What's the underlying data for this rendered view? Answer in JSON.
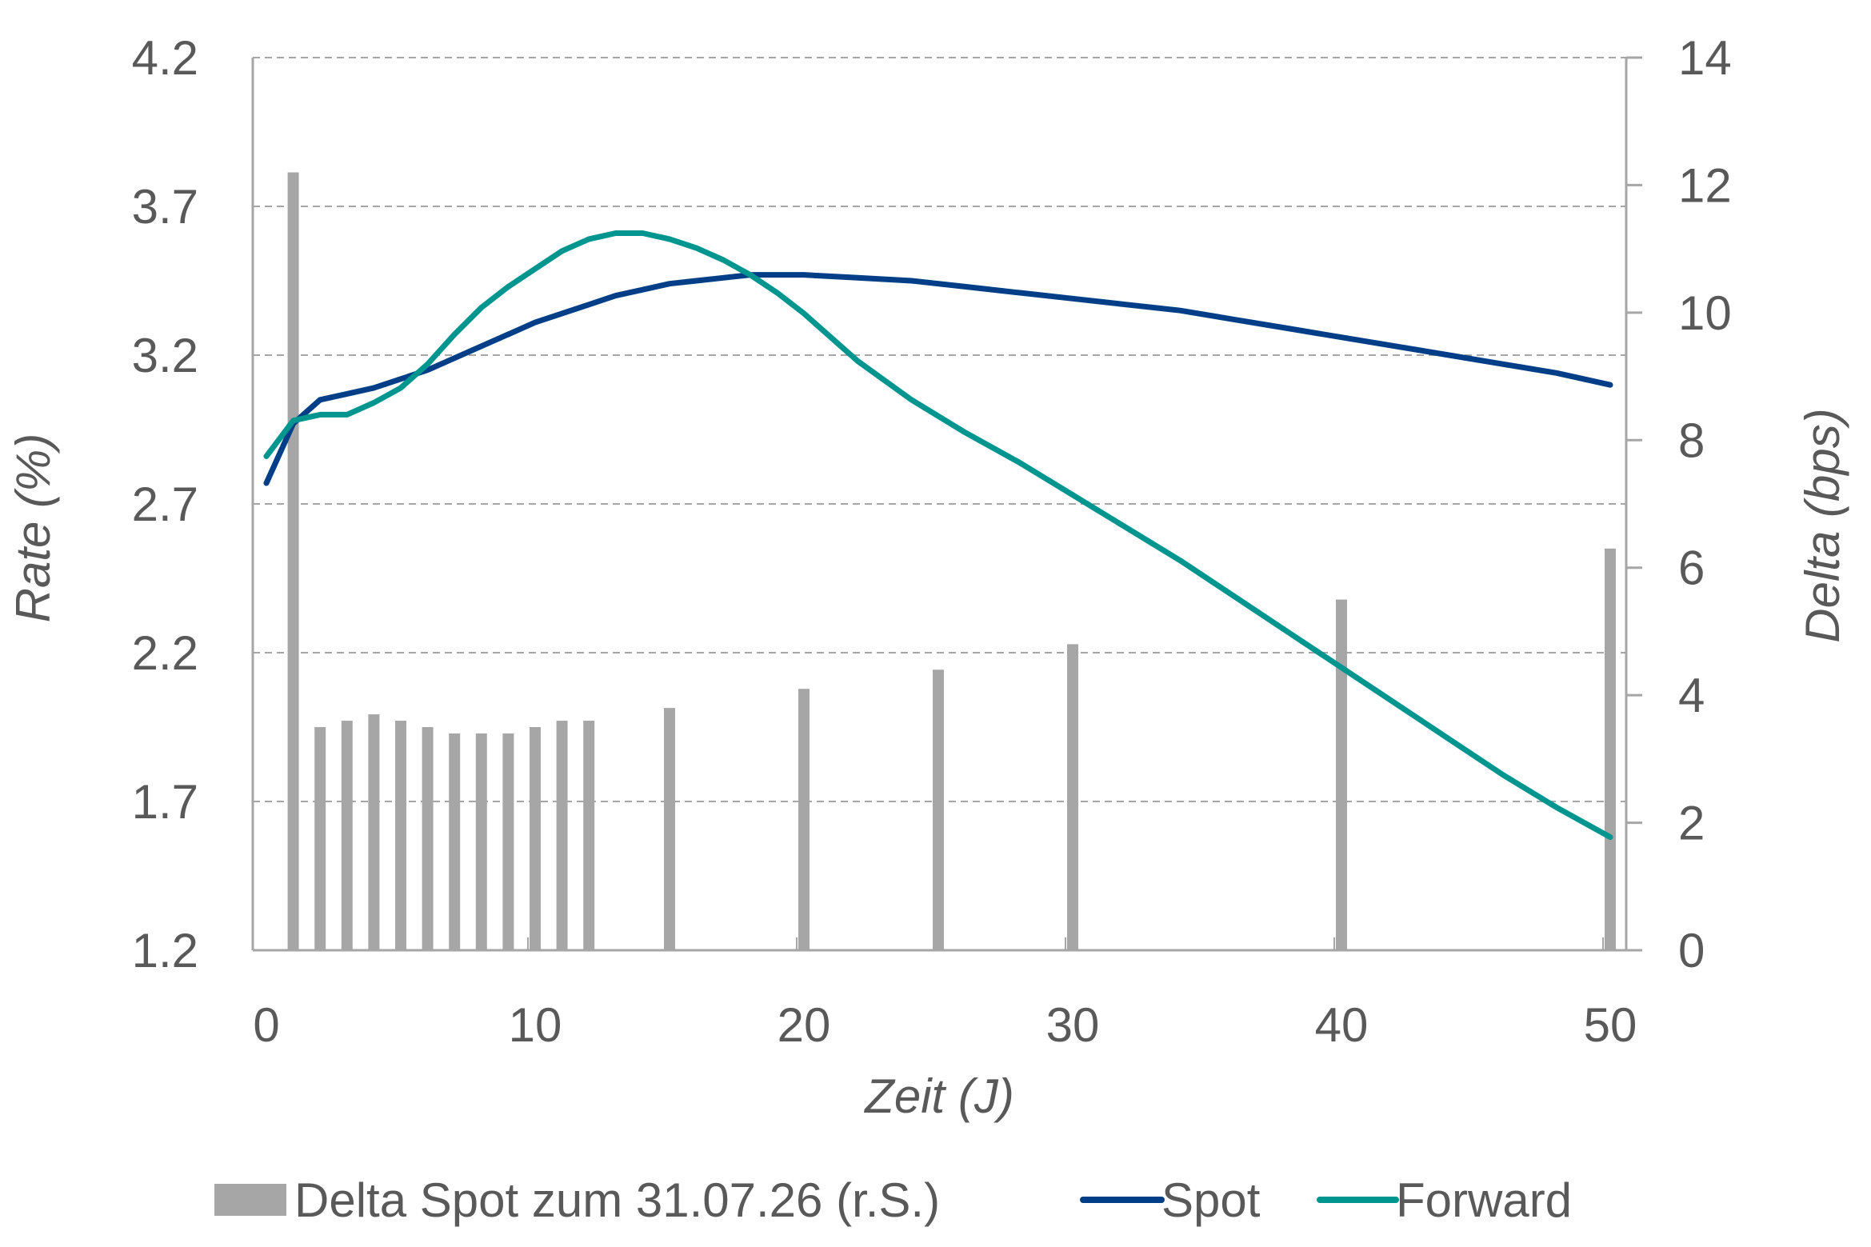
{
  "chart_data": {
    "type": "bar+line",
    "title": "",
    "xlabel": "Zeit (J)",
    "ylabel_left": "Rate (%)",
    "ylabel_right": "Delta (bps)",
    "x_ticks": [
      "0",
      "10",
      "20",
      "30",
      "40",
      "50"
    ],
    "y_left_ticks": [
      "1.2",
      "1.7",
      "2.2",
      "2.7",
      "3.2",
      "3.7",
      "4.2"
    ],
    "y_right_ticks": [
      "0",
      "2",
      "4",
      "6",
      "8",
      "10",
      "12",
      "14"
    ],
    "xlim": [
      0,
      50
    ],
    "ylim_left": [
      1.2,
      4.2
    ],
    "ylim_right": [
      0,
      14
    ],
    "grid": "horizontal dashed",
    "legend_position": "bottom",
    "colors": {
      "bars": "#a6a6a6",
      "spot": "#003f87",
      "forward": "#00968f",
      "axis": "#a6a6a6",
      "grid": "#a6a6a6",
      "text": "#595959"
    },
    "bars": {
      "name": "Delta Spot zum 31.07.26 (r.S.)",
      "axis": "right",
      "x": [
        1,
        2,
        3,
        4,
        5,
        6,
        7,
        8,
        9,
        10,
        11,
        12,
        15,
        20,
        25,
        30,
        40,
        50
      ],
      "values": [
        12.2,
        3.5,
        3.6,
        3.7,
        3.6,
        3.5,
        3.4,
        3.4,
        3.4,
        3.5,
        3.6,
        3.6,
        3.8,
        4.1,
        4.4,
        4.8,
        5.5,
        6.3
      ]
    },
    "series": [
      {
        "name": "Spot",
        "axis": "left",
        "x": [
          0,
          1,
          2,
          3,
          4,
          5,
          6,
          7,
          8,
          9,
          10,
          11,
          12,
          13,
          14,
          15,
          16,
          17,
          18,
          19,
          20,
          22,
          24,
          26,
          28,
          30,
          32,
          34,
          36,
          38,
          40,
          42,
          44,
          46,
          48,
          50
        ],
        "values": [
          2.77,
          2.97,
          3.05,
          3.07,
          3.09,
          3.12,
          3.15,
          3.19,
          3.23,
          3.27,
          3.31,
          3.34,
          3.37,
          3.4,
          3.42,
          3.44,
          3.45,
          3.46,
          3.47,
          3.47,
          3.47,
          3.46,
          3.45,
          3.43,
          3.41,
          3.39,
          3.37,
          3.35,
          3.32,
          3.29,
          3.26,
          3.23,
          3.2,
          3.17,
          3.14,
          3.1
        ]
      },
      {
        "name": "Forward",
        "axis": "left",
        "x": [
          0,
          1,
          2,
          3,
          4,
          5,
          6,
          7,
          8,
          9,
          10,
          11,
          12,
          13,
          14,
          15,
          16,
          17,
          18,
          19,
          20,
          22,
          24,
          26,
          28,
          30,
          32,
          34,
          36,
          38,
          40,
          42,
          44,
          46,
          48,
          50
        ],
        "values": [
          2.86,
          2.98,
          3.0,
          3.0,
          3.04,
          3.09,
          3.17,
          3.27,
          3.36,
          3.43,
          3.49,
          3.55,
          3.59,
          3.61,
          3.61,
          3.59,
          3.56,
          3.52,
          3.47,
          3.41,
          3.34,
          3.18,
          3.05,
          2.94,
          2.84,
          2.73,
          2.62,
          2.51,
          2.39,
          2.27,
          2.15,
          2.03,
          1.91,
          1.79,
          1.68,
          1.58
        ]
      }
    ]
  }
}
